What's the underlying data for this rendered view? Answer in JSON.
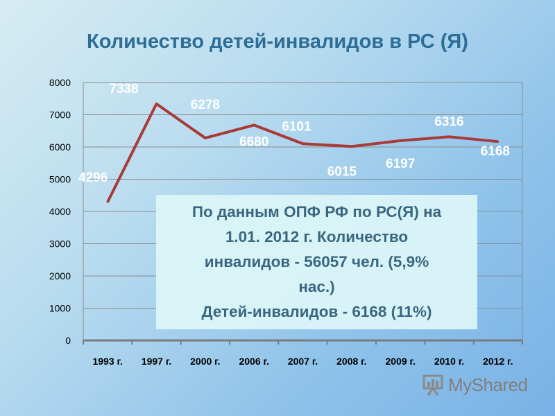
{
  "slide": {
    "title": "Количество детей-инвалидов в РС (Я)"
  },
  "info_box": {
    "lines": [
      "По данным ОПФ  РФ по РС(Я) на",
      "1.01. 2012 г.  Количество",
      "инвалидов - 56057 чел. (5,9%",
      "нас.)",
      "Детей-инвалидов - 6168  (11%)"
    ]
  },
  "watermark": {
    "text": "MyShared"
  },
  "colors": {
    "line": "#a83a3a",
    "title": "#2e6d96",
    "info_text": "#3a6780",
    "data_label": "#ffffff"
  },
  "chart_data": {
    "type": "line",
    "title": "Количество детей-инвалидов в РС (Я)",
    "categories": [
      "1993 г.",
      "1997 г.",
      "2000 г.",
      "2006 г.",
      "2007 г.",
      "2008 г.",
      "2009 г.",
      "2010 г.",
      "2012 г."
    ],
    "series": [
      {
        "values": [
          4296,
          7338,
          6278,
          6680,
          6101,
          6015,
          6197,
          6316,
          6168
        ]
      }
    ],
    "data_labels": [
      "4296",
      "7338",
      "6278",
      "6680",
      "6101",
      "6015",
      "6197",
      "6316",
      "6168"
    ],
    "yticks": [
      "0",
      "1000",
      "2000",
      "3000",
      "4000",
      "5000",
      "6000",
      "7000",
      "8000"
    ],
    "ylim": [
      0,
      8000
    ],
    "xlabel": "",
    "ylabel": "",
    "grid": true,
    "legend": "none"
  }
}
